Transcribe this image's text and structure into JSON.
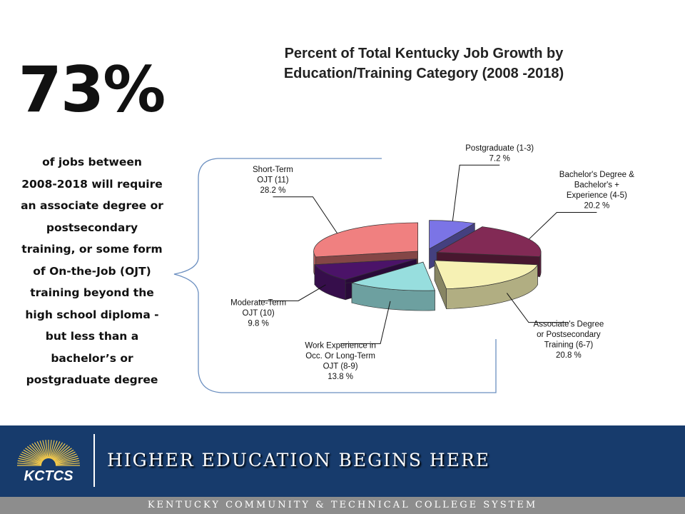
{
  "stat": {
    "value": "73%"
  },
  "description": {
    "lines": [
      "of jobs between",
      "2008-2018 will require",
      "an associate degree or",
      "postsecondary",
      "training, or some form",
      "of On-the-Job (OJT)",
      "training beyond the",
      "high school diploma -",
      "but less than a",
      "bachelor’s or",
      "postgraduate degree"
    ]
  },
  "chart_data": {
    "type": "pie",
    "title": [
      "Percent of Total Kentucky Job Growth by",
      "Education/Training Category (2008 -2018)"
    ],
    "labels": [
      "Postgraduate (1-3)",
      "Bachelor's Degree & Bachelor's + Experience (4-5)",
      "Associate's Degree or Postsecondary Training (6-7)",
      "Work Experience in Occ. Or Long-Term OJT (8-9)",
      "Moderate-Term OJT (10)",
      "Short-Term OJT (11)"
    ],
    "values": [
      7.2,
      20.2,
      20.8,
      13.8,
      9.8,
      28.2
    ],
    "value_labels": [
      "7.2 %",
      "20.2 %",
      "20.8 %",
      "13.8 %",
      "9.8 %",
      "28.2 %"
    ],
    "colors": [
      "#7b74e6",
      "#822a55",
      "#f6f1b4",
      "#97dede",
      "#4b1368",
      "#f08080"
    ],
    "label_lines": [
      [
        "Postgraduate (1-3)"
      ],
      [
        "Bachelor's Degree &",
        "Bachelor's +",
        "Experience (4-5)"
      ],
      [
        "Associate's Degree",
        "or Postsecondary",
        "Training (6-7)"
      ],
      [
        "Work Experience in",
        "Occ. Or Long-Term",
        "OJT (8-9)"
      ],
      [
        "Moderate-Term",
        "OJT (10)"
      ],
      [
        "Short-Term",
        "OJT (11)"
      ]
    ]
  },
  "footer": {
    "logo_text": "KCTCS",
    "tagline": "HIGHER EDUCATION BEGINS HERE",
    "subline": "KENTUCKY COMMUNITY & TECHNICAL COLLEGE SYSTEM"
  }
}
